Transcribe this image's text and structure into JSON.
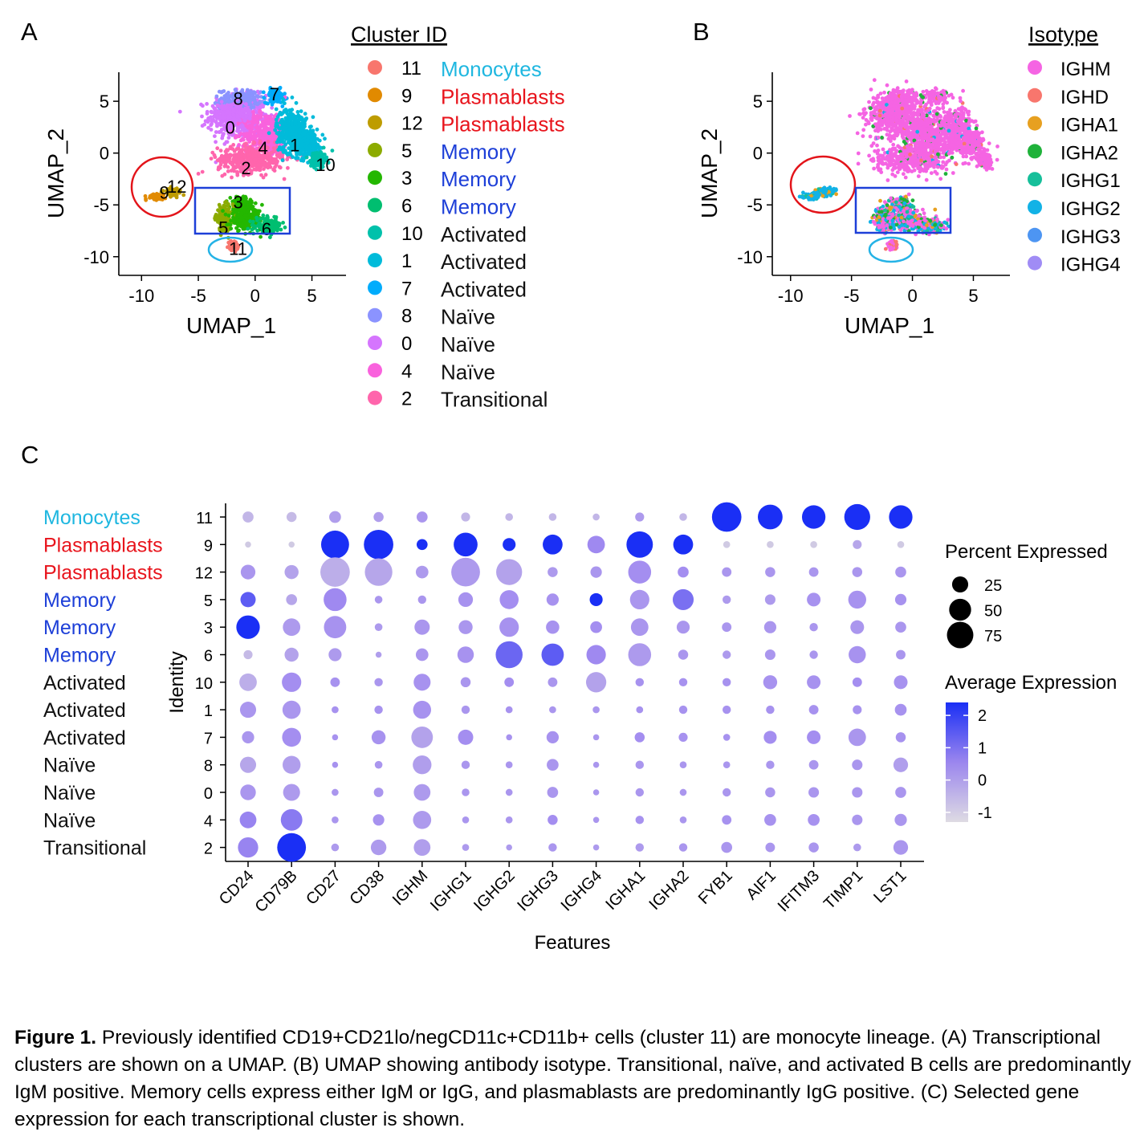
{
  "colors": {
    "monocyte": "#1fb7e0",
    "plasmablast": "#e8141c",
    "memory": "#1d3fd8",
    "other": "#111111",
    "circle_red": "#e3141a",
    "box_blue": "#1d3fd8",
    "circle_cyan": "#25b3e6",
    "dot_high": "#1a2ff5",
    "dot_mid": "#a38cf0",
    "dot_low": "#d9d6e0"
  },
  "panels": {
    "A": "A",
    "B": "B",
    "C": "C"
  },
  "chart_data": [
    {
      "type": "scatter",
      "id": "umap_clusters",
      "title": "",
      "xlabel": "UMAP_1",
      "ylabel": "UMAP_2",
      "xticks": [
        -10,
        -5,
        0,
        5
      ],
      "yticks": [
        5,
        0,
        -5,
        -10
      ],
      "xlim": [
        -12,
        8
      ],
      "ylim": [
        -11.8,
        7.8
      ],
      "legend_title": "Cluster ID",
      "legend": [
        {
          "id": "11",
          "label": "Monocytes",
          "color": "#f8766d",
          "label_type": "monocyte"
        },
        {
          "id": "9",
          "label": "Plasmablasts",
          "color": "#e18a00",
          "label_type": "plasmablast"
        },
        {
          "id": "12",
          "label": "Plasmablasts",
          "color": "#be9c00",
          "label_type": "plasmablast"
        },
        {
          "id": "5",
          "label": "Memory",
          "color": "#8cab00",
          "label_type": "memory"
        },
        {
          "id": "3",
          "label": "Memory",
          "color": "#24b700",
          "label_type": "memory"
        },
        {
          "id": "6",
          "label": "Memory",
          "color": "#00be70",
          "label_type": "memory"
        },
        {
          "id": "10",
          "label": "Activated",
          "color": "#00c1ab",
          "label_type": "other"
        },
        {
          "id": "1",
          "label": "Activated",
          "color": "#00bbda",
          "label_type": "other"
        },
        {
          "id": "7",
          "label": "Activated",
          "color": "#00acfc",
          "label_type": "other"
        },
        {
          "id": "8",
          "label": "Naïve",
          "color": "#8b93ff",
          "label_type": "other"
        },
        {
          "id": "0",
          "label": "Naïve",
          "color": "#d575fe",
          "label_type": "other"
        },
        {
          "id": "4",
          "label": "Naïve",
          "color": "#f962dd",
          "label_type": "other"
        },
        {
          "id": "2",
          "label": "Transitional",
          "color": "#ff65ac",
          "label_type": "other"
        }
      ],
      "cluster_labels": [
        {
          "text": "8",
          "x": -1.5,
          "y": 5.3
        },
        {
          "text": "7",
          "x": 1.7,
          "y": 5.7
        },
        {
          "text": "0",
          "x": -2.2,
          "y": 2.5
        },
        {
          "text": "4",
          "x": 0.7,
          "y": 0.5
        },
        {
          "text": "1",
          "x": 3.5,
          "y": 0.8
        },
        {
          "text": "2",
          "x": -0.8,
          "y": -1.4
        },
        {
          "text": "10",
          "x": 6.2,
          "y": -1.1
        },
        {
          "text": "12",
          "x": -6.9,
          "y": -3.2
        },
        {
          "text": "9",
          "x": -8.0,
          "y": -3.8
        },
        {
          "text": "3",
          "x": -1.5,
          "y": -4.7
        },
        {
          "text": "5",
          "x": -2.8,
          "y": -7.2
        },
        {
          "text": "6",
          "x": 1.0,
          "y": -7.3
        },
        {
          "text": "11",
          "x": -1.5,
          "y": -9.2
        }
      ]
    },
    {
      "type": "scatter",
      "id": "umap_isotype",
      "title": "",
      "xlabel": "UMAP_1",
      "ylabel": "UMAP_2",
      "xticks": [
        -10,
        -5,
        0,
        5
      ],
      "yticks": [
        5,
        0,
        -5,
        -10
      ],
      "xlim": [
        -11.5,
        8
      ],
      "ylim": [
        -11.8,
        7.8
      ],
      "legend_title": "Isotype",
      "legend": [
        {
          "label": "IGHM",
          "color": "#f564e3"
        },
        {
          "label": "IGHD",
          "color": "#f8766d"
        },
        {
          "label": "IGHA1",
          "color": "#e7a020"
        },
        {
          "label": "IGHA2",
          "color": "#1fb23a"
        },
        {
          "label": "IGHG1",
          "color": "#16bf9a"
        },
        {
          "label": "IGHG2",
          "color": "#12b2e6"
        },
        {
          "label": "IGHG3",
          "color": "#4d95f2"
        },
        {
          "label": "IGHG4",
          "color": "#a08cf5"
        }
      ]
    },
    {
      "type": "dotplot",
      "id": "gene_dotplot",
      "xlabel": "Features",
      "ylabel": "Identity",
      "features": [
        "CD24",
        "CD79B",
        "CD27",
        "CD38",
        "IGHM",
        "IGHG1",
        "IGHG2",
        "IGHG3",
        "IGHG4",
        "IGHA1",
        "IGHA2",
        "FYB1",
        "AIF1",
        "IFITM3",
        "TIMP1",
        "LST1"
      ],
      "identities": [
        {
          "id": "11",
          "label": "Monocytes",
          "label_type": "monocyte"
        },
        {
          "id": "9",
          "label": "Plasmablasts",
          "label_type": "plasmablast"
        },
        {
          "id": "12",
          "label": "Plasmablasts",
          "label_type": "plasmablast"
        },
        {
          "id": "5",
          "label": "Memory",
          "label_type": "memory"
        },
        {
          "id": "3",
          "label": "Memory",
          "label_type": "memory"
        },
        {
          "id": "6",
          "label": "Memory",
          "label_type": "memory"
        },
        {
          "id": "10",
          "label": "Activated",
          "label_type": "other"
        },
        {
          "id": "1",
          "label": "Activated",
          "label_type": "other"
        },
        {
          "id": "7",
          "label": "Activated",
          "label_type": "other"
        },
        {
          "id": "8",
          "label": "Naïve",
          "label_type": "other"
        },
        {
          "id": "0",
          "label": "Naïve",
          "label_type": "other"
        },
        {
          "id": "4",
          "label": "Naïve",
          "label_type": "other"
        },
        {
          "id": "2",
          "label": "Transitional",
          "label_type": "other"
        }
      ],
      "percent_expressed": [
        [
          10,
          8,
          12,
          8,
          10,
          6,
          4,
          4,
          3,
          6,
          4,
          95,
          65,
          58,
          72,
          58
        ],
        [
          2,
          2,
          85,
          95,
          10,
          60,
          15,
          40,
          30,
          75,
          40,
          3,
          3,
          3,
          6,
          3
        ],
        [
          20,
          18,
          95,
          82,
          14,
          90,
          72,
          8,
          11,
          55,
          10,
          7,
          8,
          7,
          8,
          10
        ],
        [
          22,
          10,
          55,
          4,
          5,
          20,
          36,
          13,
          15,
          38,
          45,
          5,
          9,
          17,
          32,
          11
        ],
        [
          58,
          30,
          52,
          4,
          22,
          18,
          38,
          16,
          12,
          30,
          15,
          7,
          13,
          5,
          17,
          10
        ],
        [
          6,
          18,
          15,
          2,
          14,
          26,
          78,
          52,
          38,
          55,
          8,
          5,
          9,
          5,
          29,
          7
        ],
        [
          30,
          38,
          7,
          5,
          28,
          8,
          7,
          7,
          42,
          5,
          5,
          5,
          18,
          17,
          7,
          17
        ],
        [
          25,
          33,
          3,
          5,
          32,
          5,
          3,
          3,
          3,
          3,
          5,
          5,
          5,
          7,
          6,
          12
        ],
        [
          13,
          36,
          2,
          18,
          48,
          22,
          2,
          13,
          2,
          8,
          6,
          3,
          15,
          17,
          30,
          8
        ],
        [
          25,
          32,
          2,
          4,
          35,
          5,
          3,
          12,
          2,
          5,
          3,
          3,
          5,
          7,
          9,
          20
        ],
        [
          23,
          28,
          3,
          7,
          27,
          4,
          3,
          10,
          2,
          5,
          3,
          5,
          8,
          9,
          9,
          10
        ],
        [
          27,
          48,
          3,
          11,
          33,
          3,
          3,
          8,
          2,
          5,
          3,
          7,
          12,
          12,
          9,
          13
        ],
        [
          42,
          90,
          4,
          23,
          27,
          3,
          2,
          5,
          2,
          5,
          5,
          10,
          7,
          8,
          4,
          20
        ]
      ],
      "average_expression": [
        [
          -0.5,
          -0.6,
          0.1,
          0.1,
          0.3,
          -0.5,
          -0.5,
          -0.5,
          -0.5,
          0.2,
          -0.5,
          2.4,
          2.4,
          2.4,
          2.4,
          2.4
        ],
        [
          -1.0,
          -1.0,
          2.4,
          2.4,
          2.4,
          2.4,
          2.4,
          2.4,
          0.6,
          2.4,
          2.4,
          -1.0,
          -1.0,
          -1.0,
          -0.1,
          -1.0
        ],
        [
          0.3,
          0.0,
          -0.3,
          -0.1,
          0.2,
          0.2,
          0.0,
          0.2,
          0.3,
          0.5,
          0.5,
          0.3,
          0.3,
          0.3,
          0.3,
          0.3
        ],
        [
          1.5,
          -0.1,
          0.6,
          0.3,
          0.3,
          0.4,
          0.5,
          0.4,
          2.4,
          0.3,
          1.1,
          0.2,
          0.2,
          0.4,
          0.4,
          0.4
        ],
        [
          2.4,
          0.2,
          0.4,
          0.2,
          0.3,
          0.3,
          0.4,
          0.4,
          0.5,
          0.3,
          0.3,
          0.3,
          0.3,
          0.3,
          0.3,
          0.3
        ],
        [
          -0.6,
          0.0,
          0.2,
          0.1,
          0.3,
          0.4,
          1.3,
          1.5,
          0.6,
          0.2,
          0.3,
          0.2,
          0.3,
          0.3,
          0.4,
          0.3
        ],
        [
          -0.3,
          0.5,
          0.4,
          0.3,
          0.4,
          0.3,
          0.5,
          0.3,
          0.0,
          0.4,
          0.4,
          0.4,
          0.4,
          0.4,
          0.5,
          0.4
        ],
        [
          0.3,
          0.3,
          0.4,
          0.4,
          0.4,
          0.3,
          0.4,
          0.3,
          0.3,
          0.4,
          0.4,
          0.4,
          0.4,
          0.4,
          0.4,
          0.4
        ],
        [
          0.3,
          0.5,
          0.4,
          0.4,
          0.0,
          0.5,
          0.4,
          0.4,
          0.3,
          0.5,
          0.4,
          0.4,
          0.5,
          0.5,
          0.3,
          0.4
        ],
        [
          -0.1,
          0.1,
          0.4,
          0.3,
          0.1,
          0.3,
          0.3,
          0.3,
          0.3,
          0.3,
          0.3,
          0.3,
          0.3,
          0.3,
          0.3,
          0.1
        ],
        [
          0.3,
          0.2,
          0.3,
          0.3,
          0.2,
          0.3,
          0.3,
          0.3,
          0.3,
          0.3,
          0.3,
          0.3,
          0.3,
          0.3,
          0.3,
          0.3
        ],
        [
          0.7,
          0.9,
          0.3,
          0.4,
          0.2,
          0.3,
          0.3,
          0.5,
          0.3,
          0.4,
          0.3,
          0.4,
          0.4,
          0.4,
          0.3,
          0.3
        ],
        [
          0.7,
          2.4,
          0.2,
          0.2,
          0.1,
          0.2,
          0.2,
          0.3,
          0.2,
          0.2,
          0.3,
          0.3,
          0.3,
          0.3,
          0.2,
          0.3
        ]
      ],
      "size_legend_title": "Percent Expressed",
      "size_legend": [
        25,
        50,
        75
      ],
      "color_legend_title": "Average Expression",
      "color_legend_ticks": [
        2,
        1,
        0,
        -1
      ],
      "color_range": [
        -1.3,
        2.4
      ]
    }
  ],
  "caption": {
    "bold": "Figure 1.",
    "text": " Previously identified CD19+CD21lo/negCD11c+CD11b+ cells (cluster 11) are monocyte lineage.  (A) Transcriptional clusters are shown on a UMAP.  (B) UMAP showing antibody isotype.  Transitional, naïve, and activated B cells are predominantly IgM positive.  Memory cells express either IgM or IgG, and plasmablasts are predominantly IgG positive.  (C) Selected gene expression for each transcriptional cluster is shown."
  }
}
